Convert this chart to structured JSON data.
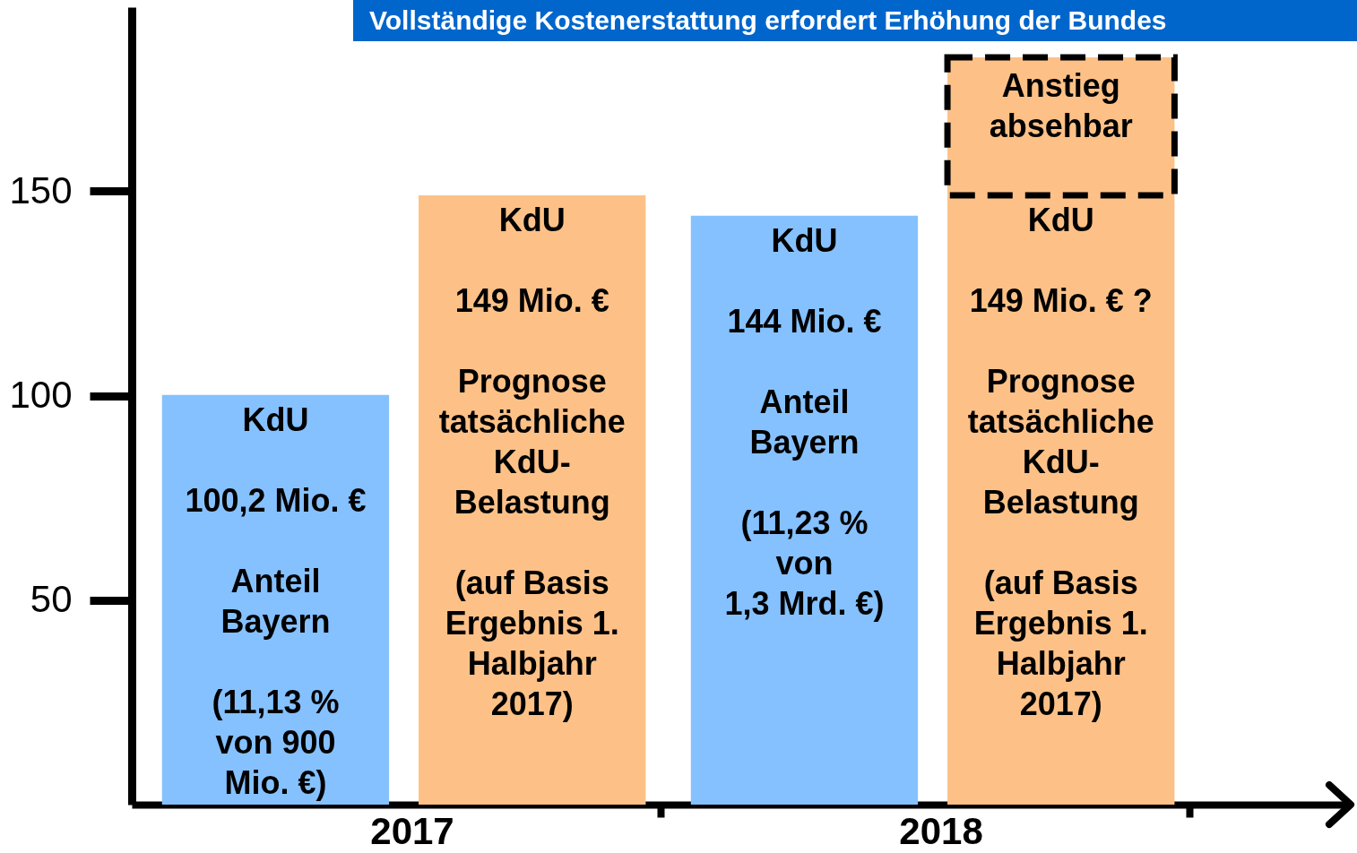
{
  "chart_data": {
    "type": "bar",
    "title": "Vollständige Kostenerstattung erfordert Erhöhung der Bundes",
    "categories": [
      "2017",
      "2018"
    ],
    "series": [
      {
        "color": "#85c1ff",
        "values": [
          100.2,
          144
        ],
        "value_labels": [
          "KdU\n\n100,2 Mio. €\n\nAnteil\nBayern\n\n(11,13 %\nvon 900\nMio. €)",
          "KdU\n\n144 Mio. €\n\nAnteil\nBayern\n\n(11,23 %\nvon\n1,3 Mrd. €)"
        ]
      },
      {
        "color": "#fdc187",
        "values": [
          149,
          149
        ],
        "value_labels": [
          "KdU\n\n149 Mio. €\n\nPrognose\ntatsächliche\nKdU-\nBelastung\n\n(auf Basis\nErgebnis 1.\nHalbjahr\n2017)",
          "KdU\n\n149 Mio. € ?\n\nPrognose\ntatsächliche\nKdU-\nBelastung\n\n(auf Basis\nErgebnis 1.\nHalbjahr\n2017)"
        ]
      }
    ],
    "annotations": [
      "Anstieg absehbar"
    ],
    "ylim": [
      0,
      195
    ],
    "yticks": [
      50,
      100,
      150
    ]
  }
}
